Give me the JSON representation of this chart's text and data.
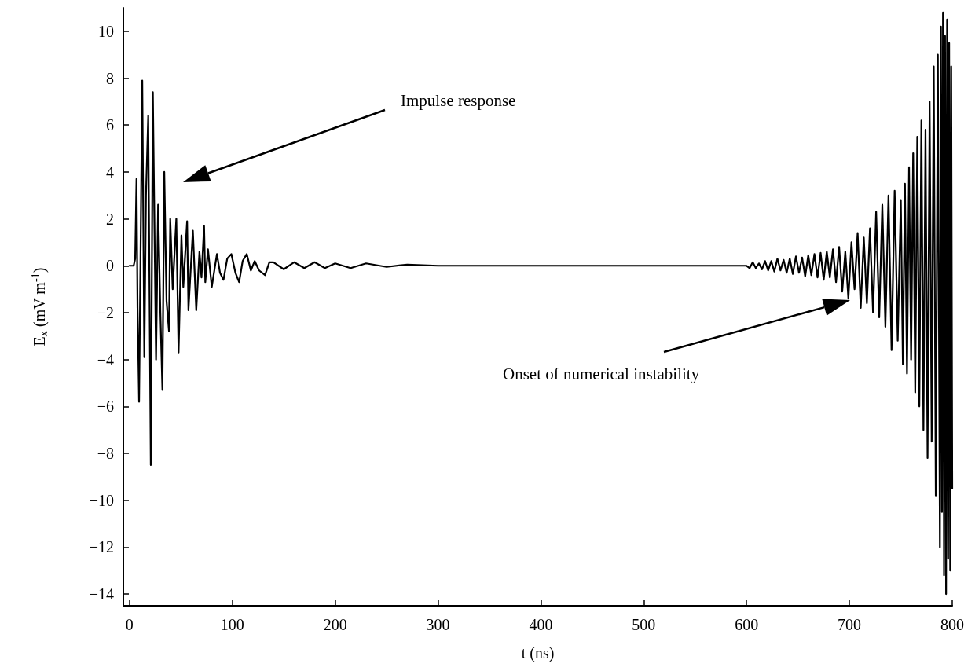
{
  "chart_data": {
    "type": "line",
    "xlabel": "t (ns)",
    "ylabel": "E$_{x}$ (mV m$^{-1}$)",
    "xlim": [
      -6,
      800
    ],
    "xticks": [
      0,
      100,
      200,
      300,
      400,
      500,
      600,
      700,
      800
    ],
    "ylim": [
      -14.5,
      11
    ],
    "yticks": [
      -14,
      -12,
      -10,
      -8,
      -6,
      -4,
      -2,
      0,
      2,
      4,
      6,
      8,
      10
    ],
    "grid": false,
    "marker": "none",
    "line_style": "solid",
    "annotations": [
      "Impulse response",
      "Onset of numerical instability"
    ],
    "series": [
      {
        "color": "#000000",
        "x": [
          0,
          4,
          5.5,
          6.8,
          7.8,
          9.3,
          12.4,
          14.4,
          16,
          18.2,
          20.7,
          22.7,
          25.8,
          27.8,
          30,
          32,
          33.8,
          36,
          38.4,
          39.6,
          42,
          45.5,
          47.7,
          50.5,
          52.3,
          56,
          57.3,
          61.6,
          64.9,
          68,
          70,
          72.5,
          73.7,
          76.3,
          80,
          85,
          88,
          91.4,
          95,
          99,
          103,
          106.6,
          110,
          114,
          118,
          121.7,
          126,
          131.8,
          136,
          140,
          150,
          160,
          170,
          180,
          190,
          200,
          215,
          230,
          250,
          270,
          300,
          600,
          603,
          606,
          609,
          612,
          615,
          618,
          621,
          624,
          627,
          630,
          633,
          636,
          639,
          642,
          645,
          648,
          651,
          654,
          657,
          660,
          663,
          666,
          669,
          672,
          675,
          678,
          681,
          684,
          687,
          690,
          693,
          696,
          699,
          702,
          705,
          708,
          711,
          714,
          717,
          720,
          723,
          726,
          729,
          732,
          735,
          738,
          741,
          744,
          747,
          750,
          752,
          754,
          756,
          758,
          760,
          762,
          764,
          766,
          768,
          770,
          772,
          774,
          776,
          778,
          780,
          782,
          784,
          786,
          788,
          789,
          790,
          791,
          792,
          793,
          794,
          795,
          796,
          797,
          798,
          799,
          800
        ],
        "values": [
          0,
          0,
          0.3,
          3.7,
          -1.8,
          -5.8,
          7.9,
          -3.9,
          3.0,
          6.4,
          -8.5,
          7.4,
          -4.0,
          2.6,
          -2.0,
          -5.3,
          4.0,
          -1.5,
          -2.8,
          2.0,
          -1.0,
          2.0,
          -3.7,
          1.3,
          -0.9,
          1.9,
          -1.9,
          1.5,
          -1.9,
          0.6,
          -0.5,
          1.7,
          -0.7,
          0.7,
          -0.9,
          0.5,
          -0.3,
          -0.6,
          0.3,
          0.5,
          -0.3,
          -0.7,
          0.2,
          0.5,
          -0.2,
          0.2,
          -0.2,
          -0.4,
          0.15,
          0.15,
          -0.15,
          0.15,
          -0.1,
          0.15,
          -0.1,
          0.1,
          -0.1,
          0.1,
          -0.05,
          0.05,
          0,
          0,
          -0.1,
          0.15,
          -0.1,
          0.1,
          -0.15,
          0.2,
          -0.2,
          0.2,
          -0.25,
          0.3,
          -0.2,
          0.25,
          -0.3,
          0.3,
          -0.35,
          0.4,
          -0.3,
          0.35,
          -0.45,
          0.45,
          -0.4,
          0.5,
          -0.5,
          0.55,
          -0.6,
          0.6,
          -0.5,
          0.7,
          -0.7,
          0.8,
          -1.1,
          0.6,
          -1.4,
          1.0,
          -1.0,
          1.4,
          -1.8,
          1.2,
          -1.6,
          1.6,
          -2.0,
          2.3,
          -2.2,
          2.6,
          -2.6,
          3.0,
          -3.6,
          3.2,
          -3.2,
          2.8,
          -4.2,
          3.5,
          -4.6,
          4.2,
          -4.0,
          4.8,
          -5.4,
          5.5,
          -6.0,
          6.2,
          -7.0,
          5.8,
          -8.2,
          7.0,
          -7.5,
          8.5,
          -9.8,
          9.0,
          -12.0,
          10.2,
          -10.5,
          10.8,
          -13.2,
          9.8,
          -14.0,
          10.5,
          -12.5,
          9.5,
          -13.0,
          8.5,
          -9.5
        ]
      }
    ]
  }
}
